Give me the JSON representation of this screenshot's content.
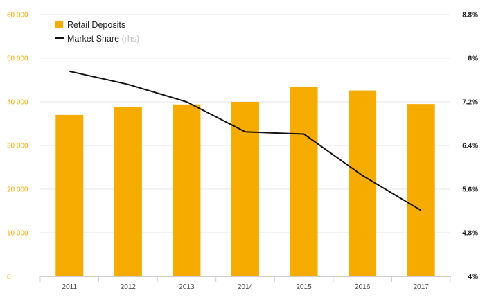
{
  "chart_data": {
    "type": "bar",
    "categories": [
      "2011",
      "2012",
      "2013",
      "2014",
      "2015",
      "2016",
      "2017"
    ],
    "series": [
      {
        "name": "Retail Deposits",
        "type": "bar",
        "axis": "left",
        "values": [
          37000,
          38800,
          39400,
          40000,
          43500,
          42600,
          39500
        ]
      },
      {
        "name": "Market Share",
        "type": "line",
        "axis": "right",
        "values": [
          7.76,
          7.52,
          7.2,
          6.65,
          6.61,
          5.85,
          5.21
        ]
      }
    ],
    "y_left": {
      "ylim": [
        0,
        60000
      ],
      "tick_labels": [
        "0",
        "10 000",
        "20 000",
        "30 000",
        "40 000",
        "50 000",
        "60 000"
      ]
    },
    "y_right": {
      "ylim": [
        4,
        8.8
      ],
      "tick_labels": [
        "4%",
        "4.8%",
        "5.6%",
        "6.4%",
        "7.2%",
        "8%",
        "8.8%"
      ]
    },
    "legend": {
      "position": "top-left",
      "items": [
        {
          "label": "Retail Deposits",
          "suffix": ""
        },
        {
          "label": "Market Share",
          "suffix": "(rhs)"
        }
      ]
    },
    "grid": true,
    "colors": {
      "bar": "#f5ab00",
      "line": "#111111",
      "left_axis_text": "#f5ab00",
      "grid": "#e6e6e6"
    }
  }
}
